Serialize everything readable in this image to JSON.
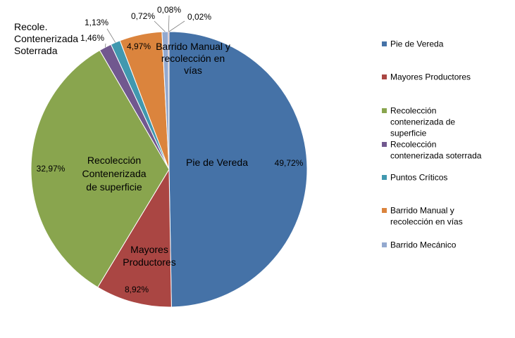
{
  "chart_data": {
    "type": "pie",
    "title": "",
    "start_angle_deg": 0,
    "legend_position": "right",
    "slices": [
      {
        "name": "Pie de Vereda",
        "legend_label": [
          "Pie de Vereda"
        ],
        "value": 49.72,
        "value_label": "49,72%",
        "inner_label": [
          "Pie de Vereda"
        ],
        "color": "#4572A7"
      },
      {
        "name": "Mayores Productores",
        "legend_label": [
          "Mayores Productores"
        ],
        "value": 8.92,
        "value_label": "8,92%",
        "inner_label": [
          "Mayores",
          "Productores"
        ],
        "color": "#AA4643"
      },
      {
        "name": "Recolección contenerizada de superficie",
        "legend_label": [
          "Recolección",
          "contenerizada de",
          "superficie"
        ],
        "value": 32.97,
        "value_label": "32,97%",
        "inner_label": [
          "Recolección",
          "Contenerizada",
          "de superficie"
        ],
        "color": "#89A54E"
      },
      {
        "name": "Recolección contenerizada soterrada",
        "legend_label": [
          "Recolección",
          "contenerizada soterrada"
        ],
        "value": 1.46,
        "value_label": "1,46%",
        "inner_label": [
          "Recole.",
          "Contenerizada",
          "Soterrada"
        ],
        "color": "#71588F"
      },
      {
        "name": "Puntos Críticos",
        "legend_label": [
          "Puntos Críticos"
        ],
        "value": 1.13,
        "value_label": "1,13%",
        "inner_label": [],
        "color": "#4198AF"
      },
      {
        "name": "Barrido Manual y recolección en vías",
        "legend_label": [
          "Barrido Manual y",
          "recolección en vías"
        ],
        "value": 4.97,
        "value_label": "4,97%",
        "inner_label": [
          "Barrido Manual y",
          "recolección en",
          "vías"
        ],
        "color": "#DB843D"
      },
      {
        "name": "Barrido Mecánico",
        "legend_label": [
          "Barrido Mecánico"
        ],
        "value": 0.72,
        "value_label": "0,72%",
        "inner_label": [],
        "color": "#93A9CF"
      },
      {
        "name": "",
        "legend_label": [],
        "value": 0.08,
        "value_label": "0,08%",
        "inner_label": [],
        "color": "#D19392"
      },
      {
        "name": "",
        "legend_label": [],
        "value": 0.02,
        "value_label": "0,02%",
        "inner_label": [],
        "color": "#B9CD96"
      }
    ]
  }
}
